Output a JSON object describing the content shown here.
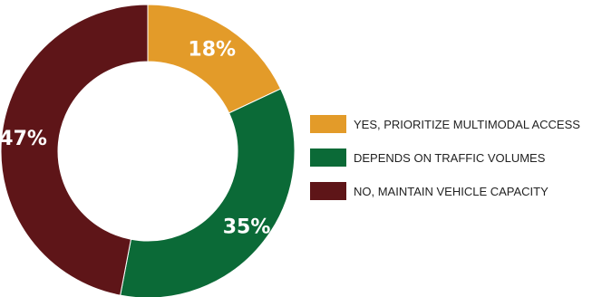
{
  "chart_data": {
    "type": "pie",
    "donut": true,
    "categories": [
      "YES, PRIORITIZE MULTIMODAL ACCESS",
      "DEPENDS ON TRAFFIC VOLUMES",
      "NO, MAINTAIN VEHICLE CAPACITY"
    ],
    "values": [
      18,
      35,
      47
    ],
    "value_labels": [
      "18%",
      "35%",
      "47%"
    ],
    "colors": [
      "#E39B29",
      "#0B6A37",
      "#5E1518"
    ],
    "legend_position": "right"
  }
}
